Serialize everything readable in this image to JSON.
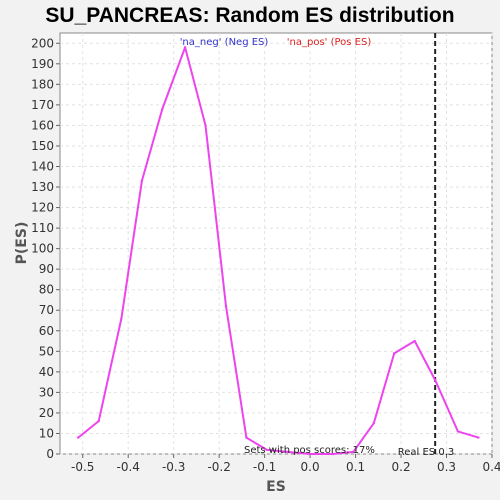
{
  "chart_data": {
    "type": "line",
    "title": "SU_PANCREAS: Random ES distribution",
    "xlabel": "ES",
    "ylabel": "P(ES)",
    "xlim": [
      -0.55,
      0.4
    ],
    "ylim": [
      0,
      205
    ],
    "xticks": [
      -0.5,
      -0.4,
      -0.3,
      -0.2,
      -0.1,
      0.0,
      0.1,
      0.2,
      0.3,
      0.4
    ],
    "yticks": [
      0,
      10,
      20,
      30,
      40,
      50,
      60,
      70,
      80,
      90,
      100,
      110,
      120,
      130,
      140,
      150,
      160,
      170,
      180,
      190,
      200
    ],
    "grid": true,
    "series": [
      {
        "name": "",
        "color": "#ee44ee",
        "x": [
          -0.51,
          -0.465,
          -0.415,
          -0.37,
          -0.325,
          -0.275,
          -0.23,
          -0.185,
          -0.14,
          -0.095,
          -0.05,
          0.0,
          0.05,
          0.095,
          0.14,
          0.185,
          0.23,
          0.275,
          0.325,
          0.37
        ],
        "y": [
          8,
          16,
          66,
          133,
          168,
          198,
          160,
          72,
          8,
          2,
          1,
          0,
          0,
          1,
          15,
          49,
          55,
          36,
          11,
          8
        ]
      }
    ],
    "legend": [
      {
        "text": "'na_neg' (Neg ES)",
        "color": "#3333cc"
      },
      {
        "text": "'na_pos' (Pos ES)",
        "color": "#dd2222"
      }
    ],
    "real_es_line": {
      "x": 0.275,
      "label": "Real ES 0.3"
    },
    "annotation": "Sets with pos scores: 17%"
  }
}
